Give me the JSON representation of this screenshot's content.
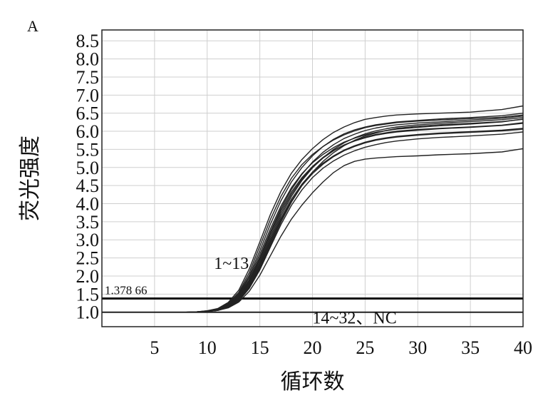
{
  "panel_label": "A",
  "chart_data": {
    "type": "line",
    "title": "",
    "xlabel": "循环数",
    "ylabel": "荧光强度",
    "xlim": [
      0,
      40
    ],
    "ylim": [
      0.6,
      8.8
    ],
    "grid": true,
    "x_ticks": [
      5,
      10,
      15,
      20,
      25,
      30,
      35,
      40
    ],
    "y_ticks": [
      1.0,
      1.5,
      2.0,
      2.5,
      3.0,
      3.5,
      4.0,
      4.5,
      5.0,
      5.5,
      6.0,
      6.5,
      7.0,
      7.5,
      8.0,
      8.5
    ],
    "y_tick_labels": [
      "1.0",
      "1.5",
      "2.0",
      "2.5",
      "3.0",
      "3.5",
      "4.0",
      "4.5",
      "5.0",
      "5.5",
      "6.0",
      "6.5",
      "7.0",
      "7.5",
      "8.0",
      "8.5"
    ],
    "threshold": {
      "value": 1.37866,
      "label": "1.378 66"
    },
    "annotations": [
      {
        "text": "1~13",
        "x": 12.3,
        "y": 2.35
      },
      {
        "text": "14~32、NC",
        "x": 24.0,
        "y": 0.85
      }
    ],
    "x": [
      0,
      2,
      4,
      6,
      8,
      9,
      10,
      11,
      12,
      13,
      14,
      15,
      16,
      17,
      18,
      19,
      20,
      21,
      22,
      23,
      24,
      25,
      26,
      27,
      28,
      30,
      32,
      35,
      38,
      40
    ],
    "series": [
      {
        "values": [
          1.0,
          1.0,
          1.0,
          1.0,
          1.0,
          1.01,
          1.04,
          1.1,
          1.27,
          1.61,
          2.2,
          2.94,
          3.7,
          4.34,
          4.84,
          5.22,
          5.52,
          5.77,
          5.97,
          6.12,
          6.24,
          6.33,
          6.38,
          6.42,
          6.45,
          6.48,
          6.5,
          6.53,
          6.6,
          6.7
        ]
      },
      {
        "values": [
          1.0,
          1.0,
          1.0,
          1.0,
          1.0,
          1.01,
          1.03,
          1.08,
          1.22,
          1.51,
          2.02,
          2.7,
          3.43,
          4.08,
          4.6,
          5.0,
          5.32,
          5.58,
          5.78,
          5.93,
          6.04,
          6.12,
          6.18,
          6.22,
          6.26,
          6.3,
          6.34,
          6.38,
          6.43,
          6.5
        ]
      },
      {
        "values": [
          1.0,
          1.0,
          1.0,
          1.0,
          1.0,
          1.01,
          1.03,
          1.08,
          1.2,
          1.45,
          1.9,
          2.52,
          3.22,
          3.86,
          4.39,
          4.81,
          5.15,
          5.42,
          5.63,
          5.8,
          5.92,
          6.02,
          6.09,
          6.14,
          6.18,
          6.23,
          6.26,
          6.31,
          6.36,
          6.42
        ]
      },
      {
        "values": [
          1.0,
          1.0,
          1.0,
          1.0,
          1.0,
          1.0,
          1.02,
          1.06,
          1.16,
          1.38,
          1.78,
          2.35,
          3.02,
          3.66,
          4.2,
          4.64,
          4.99,
          5.27,
          5.5,
          5.68,
          5.82,
          5.93,
          6.01,
          6.07,
          6.12,
          6.18,
          6.22,
          6.27,
          6.32,
          6.38
        ]
      },
      {
        "values": [
          1.0,
          1.0,
          1.0,
          1.0,
          1.0,
          1.0,
          1.02,
          1.05,
          1.14,
          1.33,
          1.69,
          2.21,
          2.85,
          3.49,
          4.04,
          4.5,
          4.87,
          5.17,
          5.41,
          5.6,
          5.75,
          5.87,
          5.95,
          6.02,
          6.08,
          6.14,
          6.18,
          6.22,
          6.27,
          6.33
        ]
      },
      {
        "values": [
          1.0,
          1.0,
          1.0,
          1.0,
          1.0,
          1.01,
          1.04,
          1.09,
          1.24,
          1.55,
          2.1,
          2.82,
          3.56,
          4.2,
          4.7,
          5.08,
          5.36,
          5.58,
          5.76,
          5.9,
          6.01,
          6.1,
          6.16,
          6.2,
          6.24,
          6.28,
          6.31,
          6.35,
          6.39,
          6.45
        ]
      },
      {
        "values": [
          1.0,
          1.0,
          1.0,
          1.0,
          1.0,
          1.01,
          1.03,
          1.07,
          1.18,
          1.42,
          1.86,
          2.47,
          3.16,
          3.8,
          4.32,
          4.72,
          5.03,
          5.28,
          5.47,
          5.62,
          5.73,
          5.82,
          5.89,
          5.94,
          5.98,
          6.03,
          6.07,
          6.11,
          6.16,
          6.22
        ]
      },
      {
        "values": [
          1.0,
          1.0,
          1.0,
          1.0,
          1.0,
          1.0,
          1.02,
          1.06,
          1.15,
          1.36,
          1.74,
          2.3,
          2.96,
          3.59,
          4.12,
          4.54,
          4.87,
          5.12,
          5.32,
          5.48,
          5.6,
          5.7,
          5.77,
          5.82,
          5.86,
          5.91,
          5.95,
          5.99,
          6.03,
          6.08
        ]
      },
      {
        "values": [
          1.0,
          1.0,
          1.0,
          1.0,
          1.0,
          1.0,
          1.02,
          1.05,
          1.13,
          1.31,
          1.66,
          2.17,
          2.8,
          3.42,
          3.95,
          4.38,
          4.72,
          4.98,
          5.18,
          5.34,
          5.46,
          5.56,
          5.63,
          5.69,
          5.73,
          5.79,
          5.83,
          5.87,
          5.92,
          5.98
        ]
      },
      {
        "values": [
          1.0,
          1.0,
          1.0,
          1.0,
          1.0,
          1.01,
          1.03,
          1.08,
          1.21,
          1.48,
          1.96,
          2.6,
          3.3,
          3.93,
          4.44,
          4.83,
          5.13,
          5.36,
          5.55,
          5.7,
          5.81,
          5.9,
          5.97,
          6.02,
          6.06,
          6.11,
          6.15,
          6.2,
          6.26,
          6.34
        ]
      },
      {
        "values": [
          1.0,
          1.0,
          1.0,
          1.0,
          1.0,
          1.0,
          1.02,
          1.06,
          1.17,
          1.4,
          1.82,
          2.41,
          3.09,
          3.73,
          4.26,
          4.68,
          5.0,
          5.26,
          5.46,
          5.62,
          5.74,
          5.84,
          5.91,
          5.96,
          6.0,
          6.05,
          6.08,
          6.12,
          6.17,
          6.24
        ]
      },
      {
        "values": [
          1.0,
          1.0,
          1.0,
          1.0,
          1.0,
          1.0,
          1.02,
          1.05,
          1.14,
          1.34,
          1.71,
          2.26,
          2.91,
          3.54,
          4.07,
          4.5,
          4.83,
          5.09,
          5.3,
          5.46,
          5.58,
          5.68,
          5.75,
          5.8,
          5.84,
          5.89,
          5.93,
          5.97,
          6.01,
          6.06
        ]
      },
      {
        "values": [
          1.0,
          1.0,
          1.0,
          1.0,
          1.0,
          1.0,
          1.02,
          1.05,
          1.12,
          1.28,
          1.58,
          2.02,
          2.56,
          3.1,
          3.57,
          3.96,
          4.3,
          4.6,
          4.86,
          5.05,
          5.17,
          5.23,
          5.26,
          5.28,
          5.3,
          5.32,
          5.35,
          5.38,
          5.43,
          5.52
        ]
      },
      {
        "values": [
          1.0,
          1.0,
          1.0,
          1.0,
          1.0,
          1.0,
          1.0,
          1.0,
          1.0,
          1.0,
          1.0,
          1.0,
          1.0,
          1.0,
          1.0,
          1.0,
          1.0,
          1.0,
          1.0,
          1.0,
          1.0,
          1.0,
          1.0,
          1.0,
          1.0,
          1.0,
          1.0,
          1.0,
          1.0,
          1.0
        ]
      }
    ]
  }
}
